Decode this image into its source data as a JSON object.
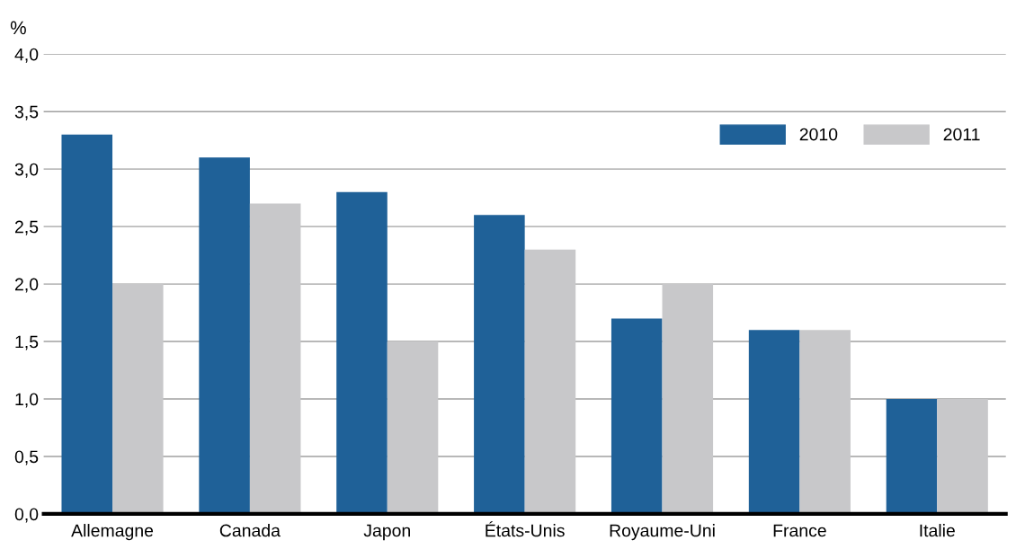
{
  "chart_data": {
    "type": "bar",
    "ylabel": "%",
    "categories": [
      "Allemagne",
      "Canada",
      "Japon",
      "États-Unis",
      "Royaume-Uni",
      "France",
      "Italie"
    ],
    "series": [
      {
        "name": "2010",
        "color": "#1f6198",
        "values": [
          3.3,
          3.1,
          2.8,
          2.6,
          1.7,
          1.6,
          1.0
        ]
      },
      {
        "name": "2011",
        "color": "#c8c8ca",
        "values": [
          2.0,
          2.7,
          1.5,
          2.3,
          2.0,
          1.6,
          1.0
        ]
      }
    ],
    "ylim": [
      0,
      4
    ],
    "yticks": [
      {
        "value": 0,
        "label": "0,0"
      },
      {
        "value": 0.5,
        "label": "0,5"
      },
      {
        "value": 1,
        "label": "1,0"
      },
      {
        "value": 1.5,
        "label": "1,5"
      },
      {
        "value": 2,
        "label": "2,0"
      },
      {
        "value": 2.5,
        "label": "2,5"
      },
      {
        "value": 3,
        "label": "3,0"
      },
      {
        "value": 3.5,
        "label": "3,5"
      },
      {
        "value": 4,
        "label": "4,0"
      }
    ],
    "grid": "y",
    "legend": "top right"
  }
}
